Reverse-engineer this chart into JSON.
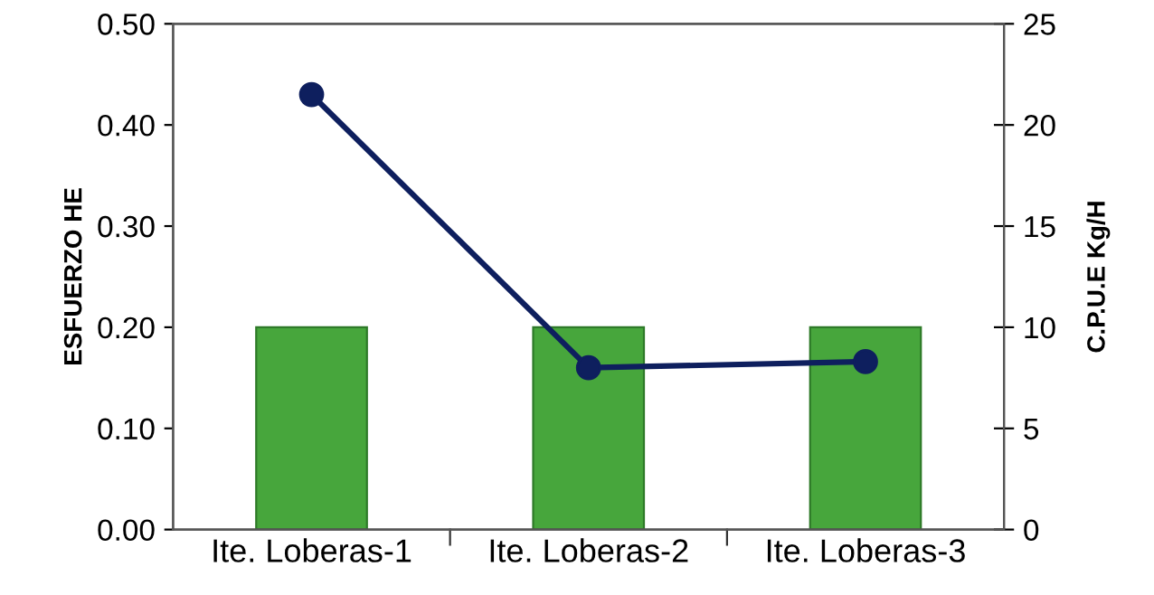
{
  "chart_data": {
    "type": "bar",
    "ylabel": "ESFUERZO HE",
    "y2label": "C.P.U.E Kg/H",
    "categories": [
      "Ite. Loberas-1",
      "Ite. Loberas-2",
      "Ite. Loberas-3"
    ],
    "series": [
      {
        "color": "#47a63c",
        "values": [
          0.2,
          0.2,
          0.2
        ]
      },
      {
        "type": "line",
        "axis": "y2",
        "color": "#0e1f5e",
        "values": [
          21.5,
          8.0,
          8.3
        ],
        "marker": "circle",
        "line_style": "solid"
      }
    ],
    "ylim": [
      0,
      0.5
    ],
    "yticks": [
      {
        "value": 0,
        "label": "0.00"
      },
      {
        "value": 0.1,
        "label": "0.10"
      },
      {
        "value": 0.2,
        "label": "0.20"
      },
      {
        "value": 0.3,
        "label": "0.30"
      },
      {
        "value": 0.4,
        "label": "0.40"
      },
      {
        "value": 0.5,
        "label": "0.50"
      }
    ],
    "y2lim": [
      0,
      25
    ],
    "y2ticks": [
      0,
      5,
      10,
      15,
      20,
      25
    ],
    "grid": false,
    "legend": false
  }
}
